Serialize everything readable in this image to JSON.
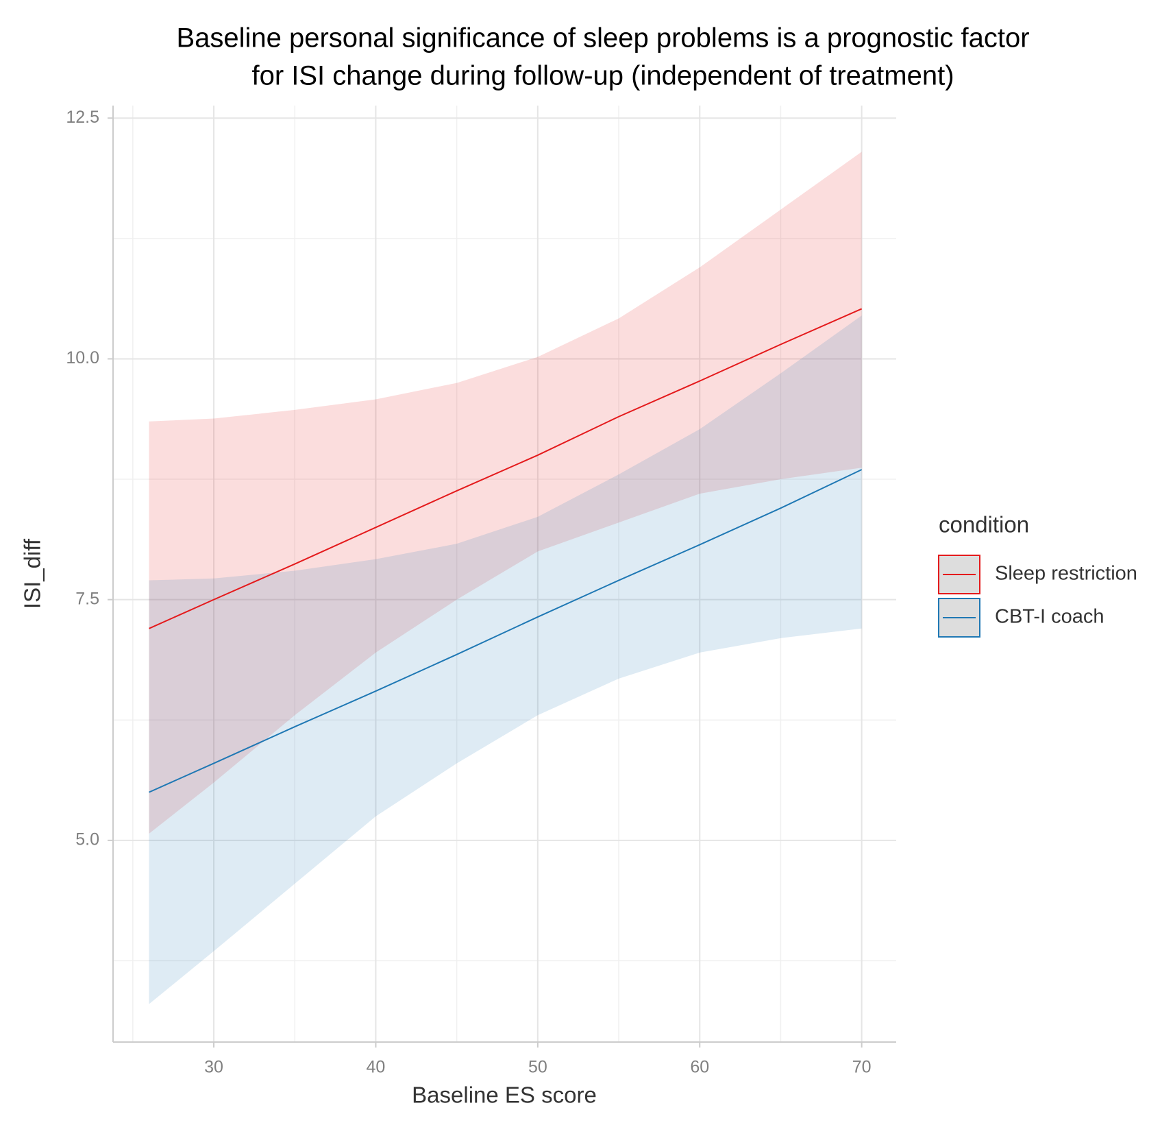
{
  "chart_data": {
    "type": "line",
    "title": [
      "Baseline personal significance of sleep problems is a prognostic factor",
      "for ISI change during follow-up (independent of treatment)"
    ],
    "x_label": "Baseline ES score",
    "y_label": "ISI_diff",
    "x": [
      26,
      30,
      35,
      40,
      45,
      50,
      55,
      60,
      65,
      70
    ],
    "series": [
      {
        "name": "Sleep restriction",
        "color": "#e41a1c",
        "values": [
          7.2,
          7.5,
          7.87,
          8.25,
          8.63,
          9.0,
          9.4,
          9.77,
          10.15,
          10.52
        ],
        "upper": [
          9.35,
          9.38,
          9.47,
          9.58,
          9.75,
          10.02,
          10.42,
          10.95,
          11.55,
          12.15
        ],
        "lower": [
          5.07,
          5.6,
          6.3,
          6.95,
          7.5,
          8.0,
          8.3,
          8.6,
          8.75,
          8.87
        ]
      },
      {
        "name": "CBT-I coach",
        "color": "#1f78b4",
        "values": [
          5.5,
          5.8,
          6.18,
          6.55,
          6.93,
          7.32,
          7.7,
          8.07,
          8.45,
          8.85
        ],
        "upper": [
          7.7,
          7.72,
          7.8,
          7.92,
          8.08,
          8.36,
          8.8,
          9.27,
          9.85,
          10.45
        ],
        "lower": [
          3.3,
          3.85,
          4.55,
          5.25,
          5.8,
          6.3,
          6.68,
          6.95,
          7.1,
          7.2
        ]
      }
    ],
    "legend_title": "condition",
    "legend": "right",
    "xlim": [
      23.78,
      72.13
    ],
    "ylim": [
      2.906,
      12.63
    ],
    "xticks": [
      30,
      40,
      50,
      60,
      70
    ],
    "yticks": [
      5.0,
      7.5,
      10.0,
      12.5
    ],
    "ytick_labels": [
      "5.0",
      "7.5",
      "10.0",
      "12.5"
    ],
    "xminor": [
      25,
      35,
      45,
      55,
      65
    ],
    "yminor": [
      3.75,
      6.25,
      8.75,
      11.25
    ],
    "grid": true
  }
}
